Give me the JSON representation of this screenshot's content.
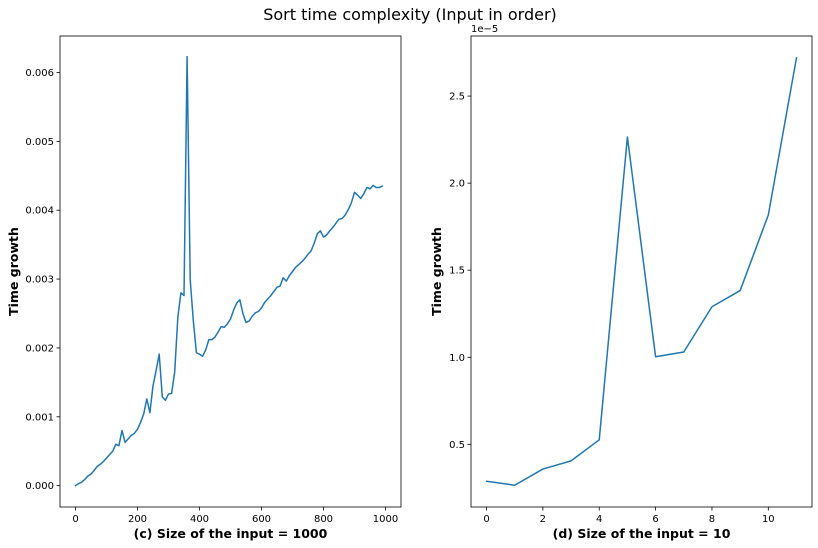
{
  "figure": {
    "title": "Sort time complexity (Input in order)"
  },
  "colors": {
    "series": "#1f77b4",
    "axes": "#000000",
    "background": "#ffffff"
  },
  "chart_data": [
    {
      "type": "line",
      "xlabel": "(c) Size of the input = 1000",
      "ylabel": "Time growth",
      "xlim": [
        -50,
        1050
      ],
      "ylim": [
        -0.00031,
        0.00653
      ],
      "xticks": [
        0,
        200,
        400,
        600,
        800,
        1000
      ],
      "xtick_labels": [
        "0",
        "200",
        "400",
        "600",
        "800",
        "1000"
      ],
      "yticks": [
        0.0,
        0.001,
        0.002,
        0.003,
        0.004,
        0.005,
        0.006
      ],
      "ytick_labels": [
        "0.000",
        "0.001",
        "0.002",
        "0.003",
        "0.004",
        "0.005",
        "0.006"
      ],
      "grid": false,
      "series": [
        {
          "x": [
            0,
            10,
            20,
            30,
            40,
            50,
            60,
            70,
            80,
            90,
            100,
            110,
            120,
            130,
            140,
            150,
            160,
            170,
            180,
            190,
            200,
            210,
            220,
            230,
            240,
            250,
            260,
            270,
            280,
            290,
            300,
            310,
            320,
            330,
            340,
            350,
            360,
            370,
            380,
            390,
            400,
            410,
            420,
            430,
            440,
            450,
            460,
            470,
            480,
            490,
            500,
            510,
            520,
            530,
            540,
            550,
            560,
            570,
            580,
            590,
            600,
            610,
            620,
            630,
            640,
            650,
            660,
            670,
            680,
            690,
            700,
            710,
            720,
            730,
            740,
            750,
            760,
            770,
            780,
            790,
            800,
            810,
            820,
            830,
            840,
            850,
            860,
            870,
            880,
            890,
            900,
            910,
            920,
            930,
            940,
            950,
            960,
            970,
            980,
            990
          ],
          "y": [
            0.0,
            3e-05,
            5e-05,
            9e-05,
            0.00014,
            0.00017,
            0.00022,
            0.00028,
            0.00031,
            0.00035,
            0.0004,
            0.00045,
            0.0005,
            0.0006,
            0.00058,
            0.0008,
            0.00063,
            0.00068,
            0.00073,
            0.00076,
            0.00082,
            0.00092,
            0.00104,
            0.00126,
            0.00106,
            0.00145,
            0.00167,
            0.00191,
            0.00129,
            0.00124,
            0.00133,
            0.00134,
            0.00165,
            0.00244,
            0.0028,
            0.00276,
            0.00623,
            0.00299,
            0.0024,
            0.00193,
            0.00191,
            0.00188,
            0.00197,
            0.00212,
            0.00212,
            0.00216,
            0.00223,
            0.00231,
            0.0023,
            0.00235,
            0.00242,
            0.00255,
            0.00265,
            0.0027,
            0.0025,
            0.00237,
            0.00239,
            0.00246,
            0.00251,
            0.00253,
            0.00258,
            0.00266,
            0.00271,
            0.00276,
            0.00282,
            0.00288,
            0.0029,
            0.00302,
            0.00297,
            0.00305,
            0.00311,
            0.00317,
            0.00321,
            0.00325,
            0.0033,
            0.00336,
            0.00341,
            0.00352,
            0.00366,
            0.0037,
            0.00361,
            0.00364,
            0.0037,
            0.00375,
            0.00381,
            0.00387,
            0.00388,
            0.00393,
            0.00401,
            0.00411,
            0.00426,
            0.00422,
            0.00417,
            0.00424,
            0.00433,
            0.00431,
            0.00436,
            0.00433,
            0.00433,
            0.00435
          ]
        }
      ]
    },
    {
      "type": "line",
      "xlabel": "(d) Size of the input = 10",
      "ylabel": "Time growth",
      "offset_text": "1e−5",
      "xlim": [
        -0.55,
        11.55
      ],
      "ylim": [
        1.4e-06,
        2.845e-05
      ],
      "xticks": [
        0,
        2,
        4,
        6,
        8,
        10
      ],
      "xtick_labels": [
        "0",
        "2",
        "4",
        "6",
        "8",
        "10"
      ],
      "yticks": [
        5e-06,
        1e-05,
        1.5e-05,
        2e-05,
        2.5e-05
      ],
      "ytick_labels": [
        "0.5",
        "1.0",
        "1.5",
        "2.0",
        "2.5"
      ],
      "grid": false,
      "series": [
        {
          "x": [
            0,
            1,
            2,
            3,
            4,
            5,
            6,
            7,
            8,
            9,
            10,
            11
          ],
          "y": [
            2.88e-06,
            2.65e-06,
            3.58e-06,
            4.05e-06,
            5.26e-06,
            2.265e-05,
            1.003e-05,
            1.03e-05,
            1.29e-05,
            1.383e-05,
            1.817e-05,
            2.72e-05
          ]
        }
      ]
    }
  ]
}
